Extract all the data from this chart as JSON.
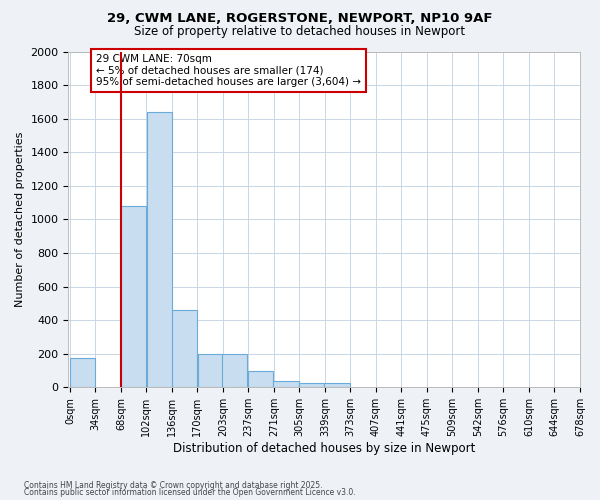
{
  "title_line1": "29, CWM LANE, ROGERSTONE, NEWPORT, NP10 9AF",
  "title_line2": "Size of property relative to detached houses in Newport",
  "xlabel": "Distribution of detached houses by size in Newport",
  "ylabel": "Number of detached properties",
  "bar_color": "#c8ddef",
  "bar_edge_color": "#6aabda",
  "bin_starts": [
    0,
    34,
    68,
    102,
    136,
    170,
    203,
    237,
    271,
    305,
    339,
    373,
    407,
    441,
    475,
    509,
    542,
    576,
    610,
    644
  ],
  "bar_heights": [
    175,
    0,
    1080,
    1640,
    460,
    200,
    200,
    100,
    40,
    25,
    25,
    0,
    0,
    0,
    0,
    0,
    0,
    0,
    0,
    0
  ],
  "tick_labels": [
    "0sqm",
    "34sqm",
    "68sqm",
    "102sqm",
    "136sqm",
    "170sqm",
    "203sqm",
    "237sqm",
    "271sqm",
    "305sqm",
    "339sqm",
    "373sqm",
    "407sqm",
    "441sqm",
    "475sqm",
    "509sqm",
    "542sqm",
    "576sqm",
    "610sqm",
    "644sqm",
    "678sqm"
  ],
  "ylim": [
    0,
    2000
  ],
  "yticks": [
    0,
    200,
    400,
    600,
    800,
    1000,
    1200,
    1400,
    1600,
    1800,
    2000
  ],
  "vline_x": 68,
  "vline_color": "#cc0000",
  "annotation_text": "29 CWM LANE: 70sqm\n← 5% of detached houses are smaller (174)\n95% of semi-detached houses are larger (3,604) →",
  "annotation_box_color": "#cc0000",
  "footer_line1": "Contains HM Land Registry data © Crown copyright and database right 2025.",
  "footer_line2": "Contains public sector information licensed under the Open Government Licence v3.0.",
  "bg_color": "#eef2f7",
  "plot_bg_color": "#ffffff",
  "grid_color": "#c0d0e0"
}
